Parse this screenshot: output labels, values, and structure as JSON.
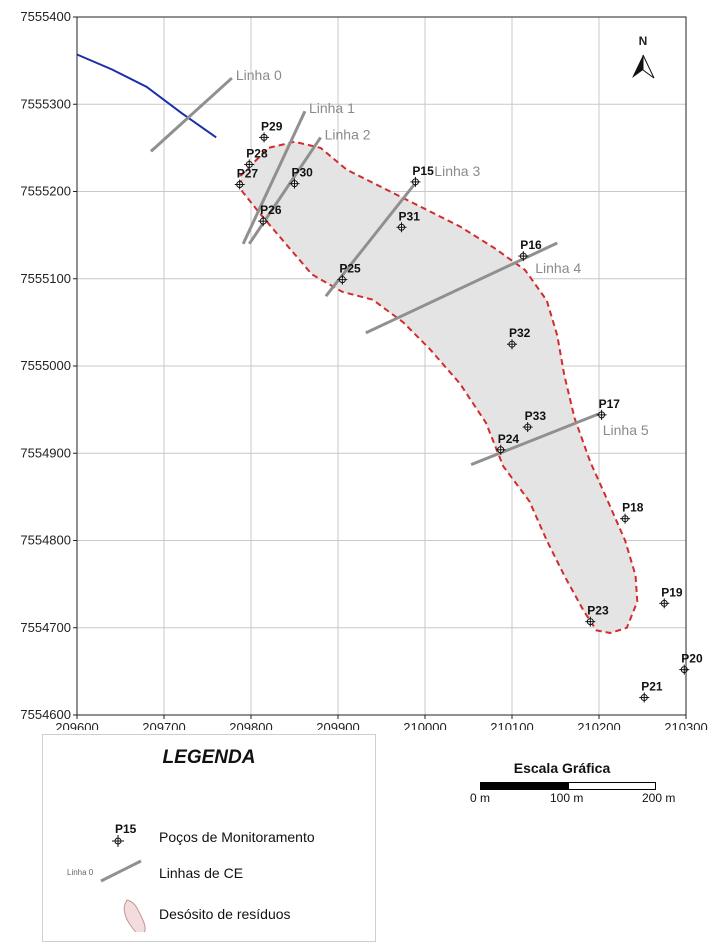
{
  "map": {
    "x_range": [
      209600,
      210300
    ],
    "y_range": [
      7554600,
      7555400
    ],
    "x_ticks": [
      "209600",
      "209700",
      "209800",
      "209900",
      "210000",
      "210100",
      "210200",
      "210300"
    ],
    "y_ticks": [
      "7555400",
      "7555300",
      "7555200",
      "7555100",
      "7555000",
      "7554900",
      "7554800",
      "7554700",
      "7554600"
    ],
    "north_label": "N",
    "wells": [
      {
        "label": "P29",
        "x": 209815,
        "y": 7555262
      },
      {
        "label": "P28",
        "x": 209798,
        "y": 7555231
      },
      {
        "label": "P27",
        "x": 209787,
        "y": 7555208
      },
      {
        "label": "P30",
        "x": 209850,
        "y": 7555209
      },
      {
        "label": "P26",
        "x": 209814,
        "y": 7555166
      },
      {
        "label": "P15",
        "x": 209989,
        "y": 7555211
      },
      {
        "label": "P31",
        "x": 209973,
        "y": 7555159
      },
      {
        "label": "P25",
        "x": 209905,
        "y": 7555099
      },
      {
        "label": "P16",
        "x": 210113,
        "y": 7555126
      },
      {
        "label": "P32",
        "x": 210100,
        "y": 7555025
      },
      {
        "label": "P33",
        "x": 210118,
        "y": 7554930
      },
      {
        "label": "P17",
        "x": 210203,
        "y": 7554944
      },
      {
        "label": "P24",
        "x": 210087,
        "y": 7554904
      },
      {
        "label": "P18",
        "x": 210230,
        "y": 7554825
      },
      {
        "label": "P19",
        "x": 210275,
        "y": 7554728
      },
      {
        "label": "P23",
        "x": 210190,
        "y": 7554707
      },
      {
        "label": "P20",
        "x": 210298,
        "y": 7554652
      },
      {
        "label": "P21",
        "x": 210252,
        "y": 7554620
      }
    ],
    "ce_lines": [
      {
        "label": "Linha 0",
        "from": [
          209685,
          7555246
        ],
        "to": [
          209778,
          7555330
        ]
      },
      {
        "label": "Linha 1",
        "from": [
          209791,
          7555140
        ],
        "to": [
          209862,
          7555292
        ]
      },
      {
        "label": "Linha 2",
        "from": [
          209798,
          7555140
        ],
        "to": [
          209880,
          7555262
        ]
      },
      {
        "label": "Linha 3",
        "from": [
          209886,
          7555080
        ],
        "to": [
          209990,
          7555211
        ]
      },
      {
        "label": "Linha 4",
        "from": [
          209932,
          7555038
        ],
        "to": [
          210152,
          7555141
        ]
      },
      {
        "label": "Linha 5",
        "from": [
          210053,
          7554887
        ],
        "to": [
          210202,
          7554946
        ]
      }
    ],
    "waste_deposit_outline": [
      [
        209788,
        7555218
      ],
      [
        209820,
        7555250
      ],
      [
        209850,
        7555257
      ],
      [
        209880,
        7555250
      ],
      [
        209910,
        7555225
      ],
      [
        209950,
        7555205
      ],
      [
        210000,
        7555180
      ],
      [
        210040,
        7555160
      ],
      [
        210080,
        7555135
      ],
      [
        210115,
        7555110
      ],
      [
        210140,
        7555075
      ],
      [
        210152,
        7555035
      ],
      [
        210160,
        7554990
      ],
      [
        210172,
        7554940
      ],
      [
        210190,
        7554890
      ],
      [
        210208,
        7554850
      ],
      [
        210230,
        7554800
      ],
      [
        210242,
        7554760
      ],
      [
        210244,
        7554730
      ],
      [
        210232,
        7554700
      ],
      [
        210213,
        7554694
      ],
      [
        210197,
        7554697
      ],
      [
        210182,
        7554720
      ],
      [
        210160,
        7554760
      ],
      [
        210140,
        7554800
      ],
      [
        210120,
        7554845
      ],
      [
        210090,
        7554885
      ],
      [
        210070,
        7554935
      ],
      [
        210040,
        7554980
      ],
      [
        210005,
        7555020
      ],
      [
        209975,
        7555050
      ],
      [
        209940,
        7555076
      ],
      [
        209905,
        7555085
      ],
      [
        209870,
        7555105
      ],
      [
        209840,
        7555140
      ],
      [
        209810,
        7555175
      ],
      [
        209790,
        7555200
      ]
    ],
    "river": [
      [
        209600,
        7555357
      ],
      [
        209640,
        7555340
      ],
      [
        209680,
        7555320
      ],
      [
        209720,
        7555290
      ],
      [
        209760,
        7555262
      ]
    ],
    "colors": {
      "grid": "#c8c8c8",
      "deposit_fill": "#e4e4e4",
      "deposit_border": "#d22c2c",
      "ce_line": "#909090",
      "river": "#1a2fa8",
      "well_label": "#111111",
      "line_label": "#8a8a8a"
    }
  },
  "legend": {
    "title": "LEGENDA",
    "wells_symbol_label": "P15",
    "wells_text": "Poços de Monitoramento",
    "lines_symbol_label": "Linha 0",
    "lines_text": "Linhas de CE",
    "deposit_text": "Desósito de resíduos",
    "deposit_icon": "waste-deposit-icon"
  },
  "scale_bar": {
    "title": "Escala Gráfica",
    "labels": [
      "0 m",
      "100 m",
      "200 m"
    ]
  }
}
